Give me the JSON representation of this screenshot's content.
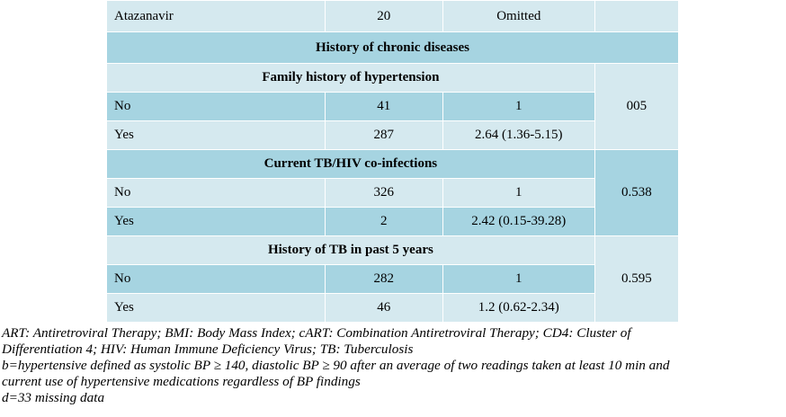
{
  "table": {
    "rows": [
      {
        "label": "Atazanavir",
        "n": "20",
        "or": "Omitted"
      }
    ],
    "section_title": "History of chronic diseases",
    "groups": [
      {
        "title": "Family history of hypertension",
        "p": "005",
        "rows": [
          {
            "label": "No",
            "n": "41",
            "or": "1"
          },
          {
            "label": "Yes",
            "n": "287",
            "or": "2.64 (1.36-5.15)"
          }
        ]
      },
      {
        "title": "Current TB/HIV co-infections",
        "p": "0.538",
        "rows": [
          {
            "label": "No",
            "n": "326",
            "or": "1"
          },
          {
            "label": "Yes",
            "n": "2",
            "or": "2.42 (0.15-39.28)"
          }
        ]
      },
      {
        "title": "History of TB in past 5 years",
        "p": "0.595",
        "rows": [
          {
            "label": "No",
            "n": "282",
            "or": "1"
          },
          {
            "label": "Yes",
            "n": "46",
            "or": "1.2 (0.62-2.34)"
          }
        ]
      }
    ]
  },
  "notes": {
    "abbrev_1": "ART: Antiretroviral Therapy; BMI: Body Mass Index; cART: Combination Antiretroviral Therapy; CD4: Cluster of",
    "abbrev_2": "Differentiation 4; HIV: Human Immune Deficiency Virus; TB: Tuberculosis",
    "b_1": "b=hypertensive defined as systolic BP ≥ 140, diastolic BP ≥ 90 after an average of two readings taken at least 10 min and",
    "b_2": "current use of hypertensive medications regardless of BP findings",
    "d": "d=33 missing data"
  },
  "colors": {
    "light_row": "#d5e9ef",
    "dark_row": "#a6d4e1"
  }
}
